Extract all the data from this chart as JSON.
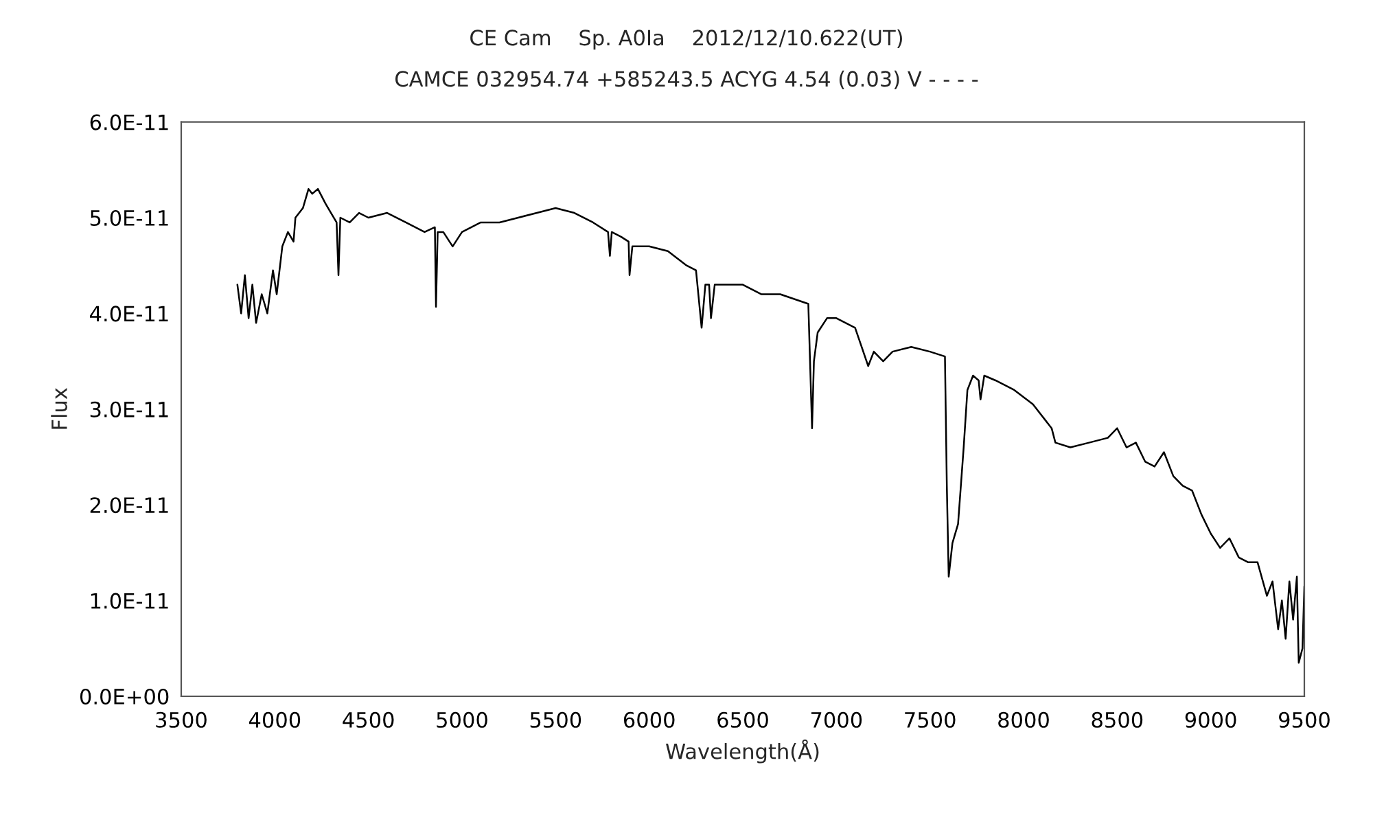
{
  "chart_data": {
    "type": "line",
    "title": "CE Cam    Sp. A0Ⅰa    2012/12/10.622(UT)",
    "subtitle": "CAMCE 032954.74 +585243.5 ACYG 4.54 (0.03) V - - - -",
    "xlabel": "Wavelength(Å)",
    "ylabel": "Flux",
    "xlim": [
      3500,
      9500
    ],
    "xticks": [
      3500,
      4000,
      4500,
      5000,
      5500,
      6000,
      6500,
      7000,
      7500,
      8000,
      8500,
      9000,
      9500
    ],
    "ylim": [
      0,
      6e-11
    ],
    "yticks": [
      {
        "value": 0,
        "label": "0.0E+00"
      },
      {
        "value": 1e-11,
        "label": "1.0E-11"
      },
      {
        "value": 2e-11,
        "label": "2.0E-11"
      },
      {
        "value": 3e-11,
        "label": "3.0E-11"
      },
      {
        "value": 4e-11,
        "label": "4.0E-11"
      },
      {
        "value": 5e-11,
        "label": "5.0E-11"
      },
      {
        "value": 6e-11,
        "label": "6.0E-11"
      }
    ],
    "grid": false,
    "legend": false,
    "marker": "none",
    "line_style": "solid",
    "series": [
      {
        "color": "#000000",
        "x": [
          3800,
          3820,
          3840,
          3860,
          3880,
          3900,
          3930,
          3960,
          3990,
          4010,
          4040,
          4070,
          4100,
          4110,
          4150,
          4180,
          4200,
          4230,
          4270,
          4300,
          4330,
          4340,
          4350,
          4400,
          4450,
          4500,
          4600,
          4700,
          4800,
          4855,
          4861,
          4870,
          4900,
          4950,
          5000,
          5100,
          5200,
          5300,
          5400,
          5500,
          5600,
          5700,
          5780,
          5790,
          5800,
          5850,
          5890,
          5895,
          5910,
          6000,
          6100,
          6200,
          6250,
          6280,
          6300,
          6320,
          6330,
          6350,
          6400,
          6500,
          6550,
          6600,
          6700,
          6850,
          6870,
          6880,
          6900,
          6950,
          7000,
          7100,
          7170,
          7200,
          7250,
          7300,
          7400,
          7500,
          7580,
          7590,
          7600,
          7620,
          7650,
          7680,
          7700,
          7730,
          7760,
          7770,
          7790,
          7850,
          7950,
          8050,
          8150,
          8170,
          8250,
          8350,
          8450,
          8500,
          8550,
          8600,
          8650,
          8700,
          8750,
          8800,
          8850,
          8900,
          8950,
          9000,
          9050,
          9100,
          9150,
          9200,
          9250,
          9300,
          9330,
          9360,
          9380,
          9400,
          9420,
          9440,
          9460,
          9470,
          9490,
          9500
        ],
        "values": [
          4.3e-11,
          4e-11,
          4.4e-11,
          3.95e-11,
          4.3e-11,
          3.9e-11,
          4.2e-11,
          4e-11,
          4.45e-11,
          4.2e-11,
          4.7e-11,
          4.85e-11,
          4.75e-11,
          5e-11,
          5.1e-11,
          5.3e-11,
          5.25e-11,
          5.3e-11,
          5.15e-11,
          5.05e-11,
          4.95e-11,
          4.4e-11,
          5e-11,
          4.95e-11,
          5.05e-11,
          5e-11,
          5.05e-11,
          4.95e-11,
          4.85e-11,
          4.9e-11,
          4.07e-11,
          4.85e-11,
          4.85e-11,
          4.7e-11,
          4.85e-11,
          4.95e-11,
          4.95e-11,
          5e-11,
          5.05e-11,
          5.1e-11,
          5.05e-11,
          4.95e-11,
          4.85e-11,
          4.6e-11,
          4.85e-11,
          4.8e-11,
          4.75e-11,
          4.4e-11,
          4.7e-11,
          4.7e-11,
          4.65e-11,
          4.5e-11,
          4.45e-11,
          3.85e-11,
          4.3e-11,
          4.3e-11,
          3.95e-11,
          4.3e-11,
          4.3e-11,
          4.3e-11,
          4.25e-11,
          4.2e-11,
          4.2e-11,
          4.1e-11,
          2.8e-11,
          3.5e-11,
          3.8e-11,
          3.95e-11,
          3.95e-11,
          3.85e-11,
          3.45e-11,
          3.6e-11,
          3.5e-11,
          3.6e-11,
          3.65e-11,
          3.6e-11,
          3.55e-11,
          2.2e-11,
          1.25e-11,
          1.6e-11,
          1.8e-11,
          2.6e-11,
          3.2e-11,
          3.35e-11,
          3.3e-11,
          3.1e-11,
          3.35e-11,
          3.3e-11,
          3.2e-11,
          3.05e-11,
          2.8e-11,
          2.65e-11,
          2.6e-11,
          2.65e-11,
          2.7e-11,
          2.8e-11,
          2.6e-11,
          2.65e-11,
          2.45e-11,
          2.4e-11,
          2.55e-11,
          2.3e-11,
          2.2e-11,
          2.15e-11,
          1.9e-11,
          1.7e-11,
          1.55e-11,
          1.65e-11,
          1.45e-11,
          1.4e-11,
          1.4e-11,
          1.05e-11,
          1.2e-11,
          7e-12,
          1e-11,
          6e-12,
          1.2e-11,
          8e-12,
          1.25e-11,
          3.5e-12,
          5e-12,
          1.15e-11
        ]
      }
    ]
  }
}
